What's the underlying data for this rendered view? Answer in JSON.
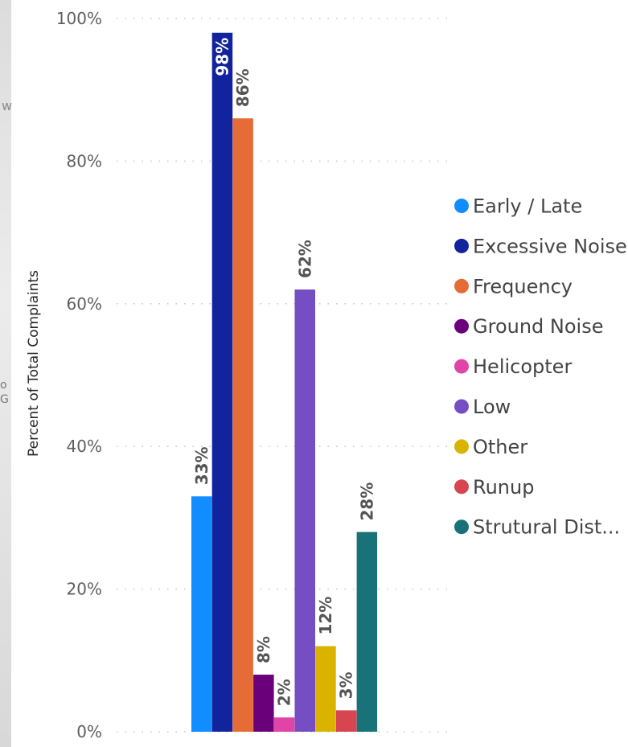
{
  "colors": {
    "grid": "#c8c6c4"
  },
  "chart_data": {
    "type": "bar",
    "ylabel": "Percent of Total Complaints",
    "xlabel": "",
    "ylim": [
      0,
      100
    ],
    "y_ticks": [
      0,
      20,
      40,
      60,
      80,
      100
    ],
    "y_tick_labels": [
      "0%",
      "20%",
      "40%",
      "60%",
      "80%",
      "100%"
    ],
    "grid": true,
    "legend_position": "right",
    "series": [
      {
        "name": "Early / Late",
        "value": 33,
        "label": "33%",
        "color": "#118dff"
      },
      {
        "name": "Excessive Noise",
        "value": 98,
        "label": "98%",
        "color": "#12239e"
      },
      {
        "name": "Frequency",
        "value": 86,
        "label": "86%",
        "color": "#e66c37"
      },
      {
        "name": "Ground Noise",
        "value": 8,
        "label": "8%",
        "color": "#6b007b"
      },
      {
        "name": "Helicopter",
        "value": 2,
        "label": "2%",
        "color": "#e044a7"
      },
      {
        "name": "Low",
        "value": 62,
        "label": "62%",
        "color": "#744ec2"
      },
      {
        "name": "Other",
        "value": 12,
        "label": "12%",
        "color": "#d9b300"
      },
      {
        "name": "Runup",
        "value": 3,
        "label": "3%",
        "color": "#d64550"
      },
      {
        "name": "Strutural Dist...",
        "value": 28,
        "label": "28%",
        "color": "#197278"
      }
    ]
  }
}
